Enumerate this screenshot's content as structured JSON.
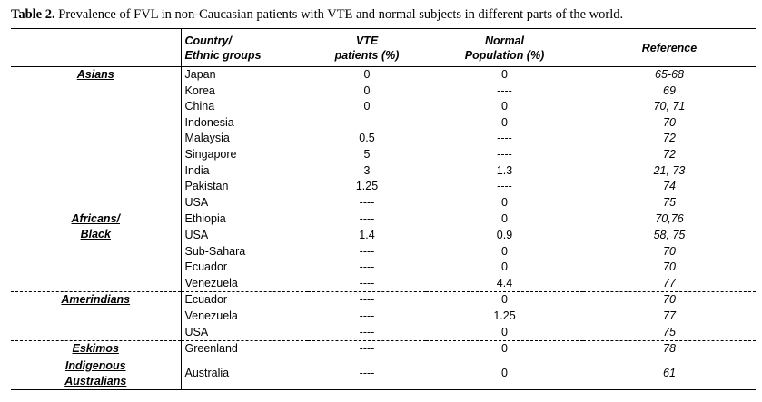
{
  "caption": {
    "label": "Table 2.",
    "text": " Prevalence of FVL in non-Caucasian  patients with VTE and normal subjects  in different parts of the world."
  },
  "headers": {
    "country_line1": "Country/",
    "country_line2": "Ethnic groups",
    "vte_line1": "VTE",
    "vte_line2": "patients (%)",
    "normal_line1": "Normal",
    "normal_line2": "Population  (%)",
    "reference": "Reference"
  },
  "groups": [
    {
      "name_lines": [
        "Asians"
      ],
      "rows": [
        {
          "country": "Japan",
          "vte": "0",
          "normal": "0",
          "ref": "65-68"
        },
        {
          "country": "Korea",
          "vte": "0",
          "normal": "----",
          "ref": "69"
        },
        {
          "country": "China",
          "vte": "0",
          "normal": "0",
          "ref": "70, 71"
        },
        {
          "country": "Indonesia",
          "vte": "----",
          "normal": "0",
          "ref": "70"
        },
        {
          "country": "Malaysia",
          "vte": "0.5",
          "normal": "----",
          "ref": "72"
        },
        {
          "country": "Singapore",
          "vte": "5",
          "normal": "----",
          "ref": "72"
        },
        {
          "country": "India",
          "vte": "3",
          "normal": "1.3",
          "ref": "21, 73"
        },
        {
          "country": "Pakistan",
          "vte": "1.25",
          "normal": "----",
          "ref": "74"
        },
        {
          "country": "USA",
          "vte": "----",
          "normal": "0",
          "ref": "75"
        }
      ]
    },
    {
      "name_lines": [
        "Africans/",
        "Black"
      ],
      "rows": [
        {
          "country": "Ethiopia",
          "vte": "----",
          "normal": "0",
          "ref": "70,76"
        },
        {
          "country": "USA",
          "vte": "1.4",
          "normal": "0.9",
          "ref": "58, 75"
        },
        {
          "country": "Sub-Sahara",
          "vte": "----",
          "normal": "0",
          "ref": "70"
        },
        {
          "country": "Ecuador",
          "vte": "----",
          "normal": "0",
          "ref": "70"
        },
        {
          "country": "Venezuela",
          "vte": "----",
          "normal": "4.4",
          "ref": "77"
        }
      ]
    },
    {
      "name_lines": [
        "Amerindians"
      ],
      "rows": [
        {
          "country": "Ecuador",
          "vte": "----",
          "normal": "0",
          "ref": "70"
        },
        {
          "country": "Venezuela",
          "vte": "----",
          "normal": "1.25",
          "ref": "77"
        },
        {
          "country": "USA",
          "vte": "----",
          "normal": "0",
          "ref": "75"
        }
      ]
    },
    {
      "name_lines": [
        "Eskimos"
      ],
      "rows": [
        {
          "country": "Greenland",
          "vte": "----",
          "normal": "0",
          "ref": "78"
        }
      ]
    },
    {
      "name_lines": [
        "Indigenous",
        "Australians"
      ],
      "rows": [
        {
          "country": "Australia",
          "vte": "----",
          "normal": "0",
          "ref": "61"
        }
      ]
    }
  ]
}
